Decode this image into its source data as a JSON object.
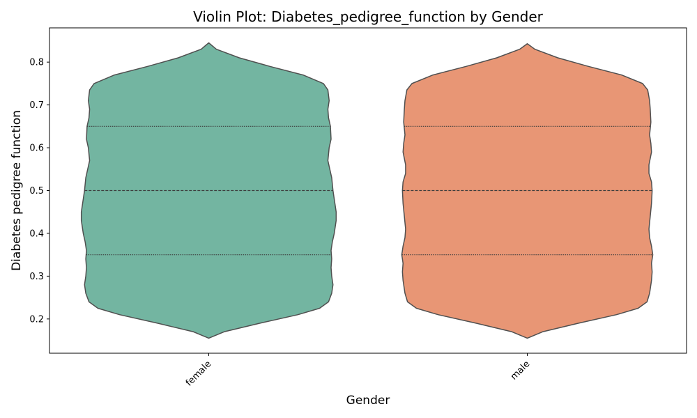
{
  "chart_data": {
    "type": "violin",
    "title": "Violin Plot: Diabetes_pedigree_function by Gender",
    "xlabel": "Gender",
    "ylabel": "Diabetes pedigree function",
    "categories": [
      "female",
      "male"
    ],
    "ylim": [
      0.12,
      0.88
    ],
    "yticks": [
      "0.2",
      "0.3",
      "0.4",
      "0.5",
      "0.6",
      "0.7",
      "0.8"
    ],
    "grid": false,
    "legend": "none",
    "series": [
      {
        "category": "female",
        "color": "#73b5a1",
        "quartiles": [
          0.35,
          0.5,
          0.65
        ],
        "range": [
          0.155,
          0.845
        ],
        "density": [
          [
            0.155,
            0.0
          ],
          [
            0.17,
            0.12
          ],
          [
            0.19,
            0.4
          ],
          [
            0.21,
            0.7
          ],
          [
            0.225,
            0.87
          ],
          [
            0.24,
            0.94
          ],
          [
            0.26,
            0.965
          ],
          [
            0.28,
            0.975
          ],
          [
            0.3,
            0.965
          ],
          [
            0.32,
            0.96
          ],
          [
            0.34,
            0.965
          ],
          [
            0.36,
            0.96
          ],
          [
            0.38,
            0.97
          ],
          [
            0.4,
            0.985
          ],
          [
            0.43,
            1.0
          ],
          [
            0.45,
            1.0
          ],
          [
            0.47,
            0.99
          ],
          [
            0.5,
            0.975
          ],
          [
            0.53,
            0.965
          ],
          [
            0.55,
            0.95
          ],
          [
            0.57,
            0.935
          ],
          [
            0.6,
            0.945
          ],
          [
            0.62,
            0.96
          ],
          [
            0.65,
            0.955
          ],
          [
            0.67,
            0.94
          ],
          [
            0.69,
            0.935
          ],
          [
            0.71,
            0.945
          ],
          [
            0.735,
            0.935
          ],
          [
            0.75,
            0.9
          ],
          [
            0.77,
            0.74
          ],
          [
            0.79,
            0.48
          ],
          [
            0.81,
            0.24
          ],
          [
            0.83,
            0.06
          ],
          [
            0.845,
            0.0
          ]
        ]
      },
      {
        "category": "male",
        "color": "#e89675",
        "quartiles": [
          0.35,
          0.5,
          0.65
        ],
        "range": [
          0.155,
          0.843
        ],
        "density": [
          [
            0.155,
            0.0
          ],
          [
            0.17,
            0.12
          ],
          [
            0.19,
            0.4
          ],
          [
            0.21,
            0.7
          ],
          [
            0.225,
            0.87
          ],
          [
            0.24,
            0.94
          ],
          [
            0.26,
            0.96
          ],
          [
            0.29,
            0.975
          ],
          [
            0.31,
            0.98
          ],
          [
            0.33,
            0.975
          ],
          [
            0.35,
            0.985
          ],
          [
            0.37,
            0.975
          ],
          [
            0.39,
            0.96
          ],
          [
            0.41,
            0.955
          ],
          [
            0.44,
            0.965
          ],
          [
            0.47,
            0.975
          ],
          [
            0.5,
            0.98
          ],
          [
            0.52,
            0.975
          ],
          [
            0.54,
            0.955
          ],
          [
            0.56,
            0.955
          ],
          [
            0.59,
            0.975
          ],
          [
            0.61,
            0.97
          ],
          [
            0.63,
            0.96
          ],
          [
            0.66,
            0.97
          ],
          [
            0.69,
            0.965
          ],
          [
            0.71,
            0.96
          ],
          [
            0.735,
            0.945
          ],
          [
            0.75,
            0.905
          ],
          [
            0.77,
            0.74
          ],
          [
            0.79,
            0.48
          ],
          [
            0.81,
            0.24
          ],
          [
            0.83,
            0.06
          ],
          [
            0.843,
            0.0
          ]
        ]
      }
    ]
  }
}
